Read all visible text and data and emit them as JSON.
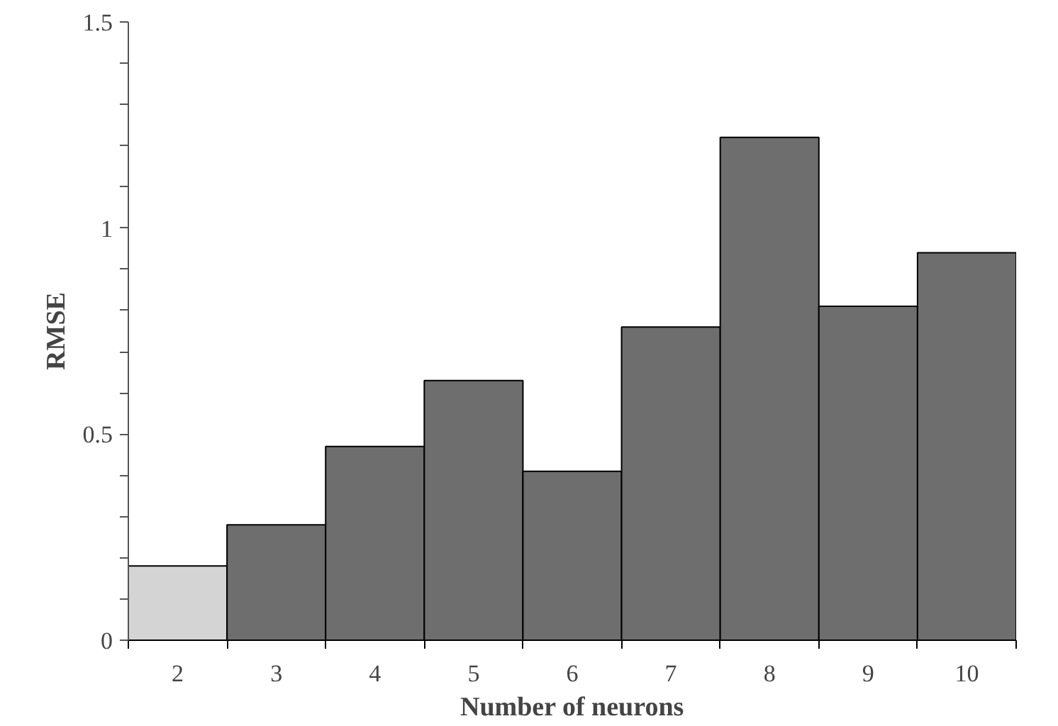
{
  "chart_data": {
    "type": "bar",
    "xlabel": "Number of neurons",
    "ylabel": "RMSE",
    "categories": [
      "2",
      "3",
      "4",
      "5",
      "6",
      "7",
      "8",
      "9",
      "10"
    ],
    "values": [
      0.18,
      0.28,
      0.47,
      0.63,
      0.41,
      0.76,
      1.22,
      0.81,
      0.94
    ],
    "colors": [
      "#d4d4d4",
      "#6e6e6e",
      "#6e6e6e",
      "#6e6e6e",
      "#6e6e6e",
      "#6e6e6e",
      "#6e6e6e",
      "#6e6e6e",
      "#6e6e6e"
    ],
    "ylim": [
      0,
      1.5
    ],
    "yticks": [
      0,
      {
        "value": 0.1,
        "label": null
      },
      {
        "value": 0.2,
        "label": null
      },
      {
        "value": 0.3,
        "label": null
      },
      {
        "value": 0.4,
        "label": null
      },
      0.5,
      {
        "value": 0.6,
        "label": null
      },
      {
        "value": 0.7,
        "label": null
      },
      {
        "value": 0.8,
        "label": null
      },
      {
        "value": 0.9,
        "label": null
      },
      1,
      {
        "value": 1.1,
        "label": null
      },
      {
        "value": 1.2,
        "label": null
      },
      {
        "value": 1.3,
        "label": null
      },
      {
        "value": 1.4,
        "label": null
      },
      1.5
    ],
    "grid": false
  }
}
